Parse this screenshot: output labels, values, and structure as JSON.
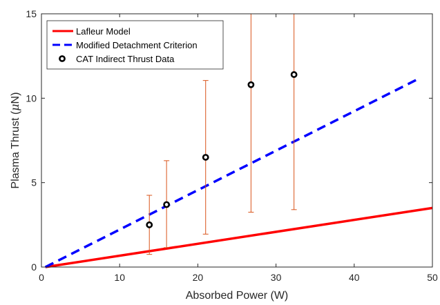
{
  "chart_data": {
    "type": "scatter",
    "title": "",
    "xlabel": "Absorbed Power (W)",
    "ylabel_prefix": "Plasma Thrust (",
    "ylabel_mu": "μ",
    "ylabel_suffix": "N)",
    "xlim": [
      0,
      50
    ],
    "ylim": [
      0,
      15
    ],
    "xticks": [
      0,
      10,
      20,
      30,
      40,
      50
    ],
    "yticks": [
      0,
      5,
      10,
      15
    ],
    "xtick_labels": [
      "0",
      "10",
      "20",
      "30",
      "40",
      "50"
    ],
    "ytick_labels": [
      "0",
      "5",
      "10",
      "15"
    ],
    "grid": false,
    "legend_position": "top-left",
    "series": [
      {
        "name": "Lafleur Model",
        "kind": "line",
        "style": "solid",
        "color": "#ff0000",
        "x": [
          0.5,
          50
        ],
        "y": [
          0,
          3.5
        ]
      },
      {
        "name": "Modified Detachment Criterion",
        "kind": "line",
        "style": "dashed",
        "color": "#0000ff",
        "x": [
          0.5,
          48
        ],
        "y": [
          0,
          11.1
        ]
      },
      {
        "name": "CAT Indirect Thrust Data",
        "kind": "points",
        "color": "#000000",
        "errorbar_color": "#d95319",
        "x": [
          13.8,
          16.0,
          21.0,
          26.8,
          32.3
        ],
        "y": [
          2.5,
          3.7,
          6.5,
          10.8,
          11.4
        ],
        "y_low": [
          0.75,
          1.15,
          1.95,
          3.25,
          3.4
        ],
        "y_high": [
          4.25,
          6.3,
          11.05,
          15,
          15
        ]
      }
    ]
  }
}
